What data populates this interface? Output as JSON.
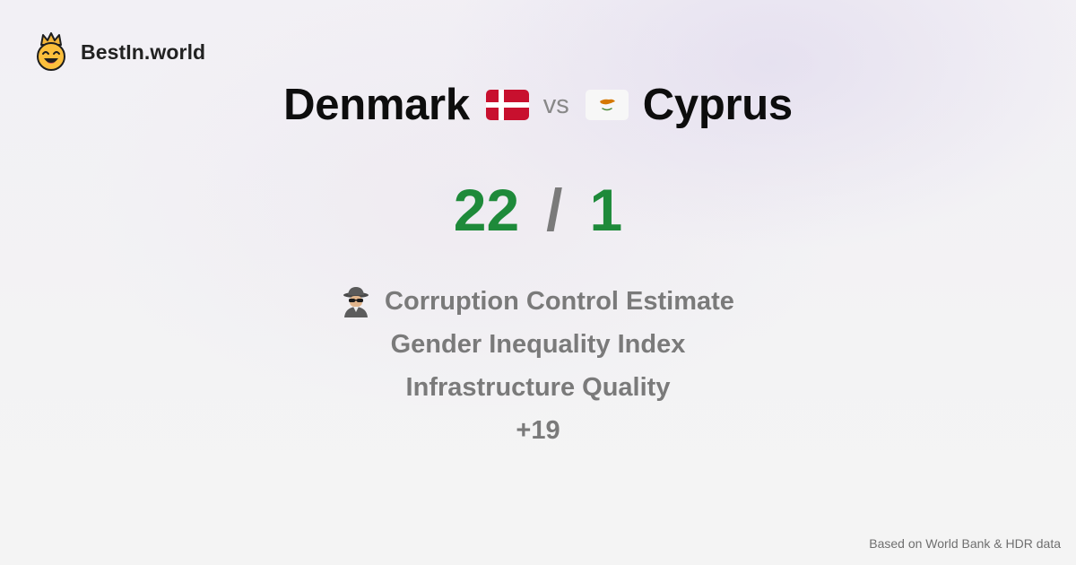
{
  "brand": {
    "name": "BestIn.world",
    "logo_icon": "crowned-smiley-icon"
  },
  "comparison": {
    "left": {
      "country": "Denmark",
      "flag_icon": "denmark-flag-icon"
    },
    "vs_label": "vs",
    "right": {
      "country": "Cyprus",
      "flag_icon": "cyprus-flag-icon"
    }
  },
  "score": {
    "left": "22",
    "separator": "/",
    "right": "1",
    "win_color": "#1e8a3a"
  },
  "metrics": [
    {
      "label": "Corruption Control Estimate",
      "icon": "spy-icon"
    },
    {
      "label": "Gender Inequality Index"
    },
    {
      "label": "Infrastructure Quality"
    },
    {
      "label": "+19"
    }
  ],
  "footer": {
    "source": "Based on World Bank & HDR data"
  }
}
